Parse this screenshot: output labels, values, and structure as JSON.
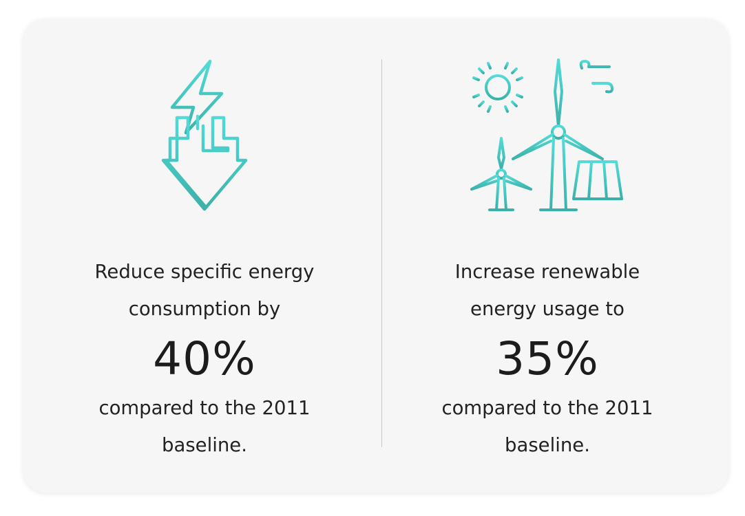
{
  "colors": {
    "accent_top": "#4fd6d4",
    "accent_bottom": "#3fb5ad",
    "card_bg": "#f6f6f6"
  },
  "goals": [
    {
      "icon": "energy-down-icon",
      "line1": "Reduce specific energy",
      "line2": "consumption by",
      "value": "40%",
      "line3": "compared to the 2011",
      "line4": "baseline."
    },
    {
      "icon": "renewable-energy-icon",
      "line1": "Increase renewable",
      "line2": "energy usage to",
      "value": "35%",
      "line3": "compared to the 2011",
      "line4": "baseline."
    }
  ]
}
